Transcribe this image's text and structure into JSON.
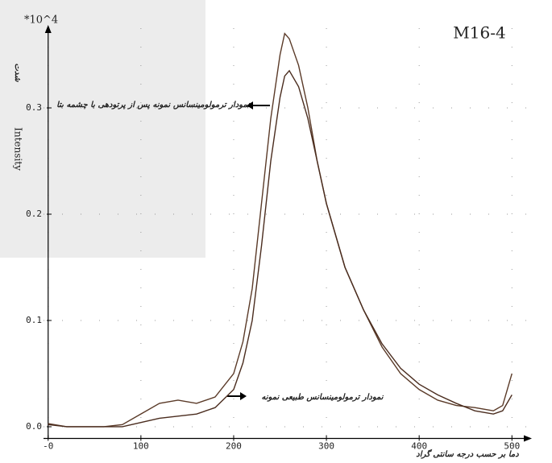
{
  "chart_data": {
    "type": "line",
    "title": "M16-4",
    "y_multiplier": "*10^4",
    "ylabel": "Intensity",
    "ylabel_fa": "شدت",
    "xlabel": "دما بر حسب درجه سانتی گراد",
    "annotations": [
      "نمودار ترمولومینسانس نمونه پس از پرتودهی با چشمه بتا",
      "نمودار ترمولومینسانس طبیعی نمونه"
    ],
    "x": [
      0,
      20,
      40,
      60,
      80,
      100,
      120,
      140,
      160,
      180,
      200,
      210,
      220,
      230,
      240,
      250,
      255,
      260,
      270,
      280,
      290,
      300,
      320,
      340,
      360,
      380,
      400,
      420,
      440,
      460,
      480,
      490,
      500
    ],
    "series": [
      {
        "color": "#5a3a28",
        "values": [
          0.003,
          0,
          0,
          0,
          0.002,
          0.012,
          0.022,
          0.025,
          0.022,
          0.028,
          0.05,
          0.08,
          0.13,
          0.21,
          0.29,
          0.35,
          0.37,
          0.365,
          0.34,
          0.3,
          0.25,
          0.21,
          0.15,
          0.11,
          0.075,
          0.05,
          0.035,
          0.025,
          0.02,
          0.018,
          0.015,
          0.02,
          0.05
        ]
      },
      {
        "color": "#4a2c1e",
        "values": [
          0.002,
          0,
          0,
          0,
          0,
          0.004,
          0.008,
          0.01,
          0.012,
          0.018,
          0.035,
          0.06,
          0.1,
          0.17,
          0.25,
          0.31,
          0.33,
          0.335,
          0.32,
          0.29,
          0.25,
          0.21,
          0.15,
          0.11,
          0.078,
          0.055,
          0.04,
          0.03,
          0.022,
          0.015,
          0.012,
          0.015,
          0.03
        ]
      }
    ],
    "xlim": [
      -5,
      518
    ],
    "ylim": [
      -0.011,
      0.375
    ],
    "xticks": [
      {
        "value": 0,
        "label": "-0"
      },
      100,
      200,
      300,
      400,
      500
    ],
    "yticks": [
      {
        "value": 0,
        "label": "0.0"
      },
      0.1,
      0.2,
      0.3
    ],
    "grid": true
  }
}
